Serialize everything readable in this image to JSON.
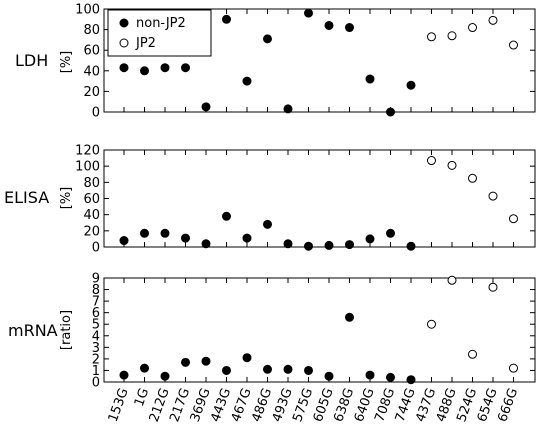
{
  "chart_data": [
    {
      "type": "scatter",
      "row_label": "LDH",
      "ylabel": "[%]",
      "ylim": [
        0,
        100
      ],
      "yticks": [
        0,
        20,
        40,
        60,
        80,
        100
      ],
      "legend": {
        "placement": "top-left",
        "entries": [
          "non-JP2",
          "JP2"
        ]
      },
      "series": [
        {
          "name": "non-JP2",
          "marker": "filled-circle",
          "color": "#000000",
          "points": [
            [
              0,
              43
            ],
            [
              1,
              40
            ],
            [
              2,
              43
            ],
            [
              3,
              43
            ],
            [
              4,
              5
            ],
            [
              5,
              90
            ],
            [
              6,
              30
            ],
            [
              7,
              71
            ],
            [
              8,
              3
            ],
            [
              9,
              96
            ],
            [
              10,
              84
            ],
            [
              11,
              82
            ],
            [
              12,
              32
            ],
            [
              13,
              0
            ],
            [
              14,
              26
            ]
          ]
        },
        {
          "name": "JP2",
          "marker": "open-circle",
          "color": "#000000",
          "points": [
            [
              15,
              73
            ],
            [
              16,
              74
            ],
            [
              17,
              82
            ],
            [
              18,
              89
            ],
            [
              19,
              65
            ]
          ]
        }
      ]
    },
    {
      "type": "scatter",
      "row_label": "ELISA",
      "ylabel": "[%]",
      "ylim": [
        0,
        120
      ],
      "yticks": [
        0,
        20,
        40,
        60,
        80,
        100,
        120
      ],
      "series": [
        {
          "name": "non-JP2",
          "marker": "filled-circle",
          "color": "#000000",
          "points": [
            [
              0,
              8
            ],
            [
              1,
              17
            ],
            [
              2,
              17
            ],
            [
              3,
              11
            ],
            [
              4,
              4
            ],
            [
              5,
              38
            ],
            [
              6,
              11
            ],
            [
              7,
              28
            ],
            [
              8,
              4
            ],
            [
              9,
              1
            ],
            [
              10,
              2
            ],
            [
              11,
              3
            ],
            [
              12,
              10
            ],
            [
              13,
              17
            ],
            [
              14,
              1
            ]
          ]
        },
        {
          "name": "JP2",
          "marker": "open-circle",
          "color": "#000000",
          "points": [
            [
              15,
              107
            ],
            [
              16,
              101
            ],
            [
              17,
              85
            ],
            [
              18,
              63
            ],
            [
              19,
              35
            ]
          ]
        }
      ]
    },
    {
      "type": "scatter",
      "row_label": "mRNA",
      "ylabel": "[ratio]",
      "ylim": [
        0,
        9
      ],
      "yticks": [
        0,
        1,
        2,
        3,
        4,
        5,
        6,
        7,
        8,
        9
      ],
      "series": [
        {
          "name": "non-JP2",
          "marker": "filled-circle",
          "color": "#000000",
          "points": [
            [
              0,
              0.6
            ],
            [
              1,
              1.2
            ],
            [
              2,
              0.5
            ],
            [
              3,
              1.7
            ],
            [
              4,
              1.8
            ],
            [
              5,
              1.0
            ],
            [
              6,
              2.1
            ],
            [
              7,
              1.1
            ],
            [
              8,
              1.1
            ],
            [
              9,
              1.0
            ],
            [
              10,
              0.5
            ],
            [
              11,
              5.6
            ],
            [
              12,
              0.6
            ],
            [
              13,
              0.4
            ],
            [
              14,
              0.2
            ]
          ]
        },
        {
          "name": "JP2",
          "marker": "open-circle",
          "color": "#000000",
          "points": [
            [
              15,
              5.0
            ],
            [
              16,
              8.8
            ],
            [
              17,
              2.4
            ],
            [
              18,
              8.2
            ],
            [
              19,
              1.2
            ]
          ]
        }
      ]
    }
  ],
  "x_categories": [
    "153G",
    "1G",
    "212G",
    "217G",
    "369G",
    "443G",
    "467G",
    "486G",
    "493G",
    "575G",
    "605G",
    "638G",
    "640G",
    "708G",
    "744G",
    "437G",
    "488G",
    "524G",
    "654G",
    "666G"
  ]
}
